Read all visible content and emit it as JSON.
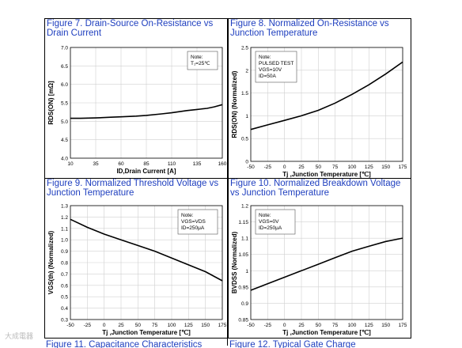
{
  "charts": [
    {
      "title": "Figure 7. Drain-Source On-Resistance vs Drain Current",
      "title_lines": [
        "Figure 7. Drain-Source On-Resistance vs",
        "Drain Current"
      ],
      "note_lines": [
        "Note:",
        "T₁=25℃"
      ]
    },
    {
      "title": "Figure 8. Normalized On-Resistance vs Junction Temperature",
      "title_lines": [
        "Figure 8. Normalized On-Resistance vs",
        "Junction Temperature"
      ],
      "note_lines": [
        "Note:",
        "PULSED TEST",
        "VGS=10V",
        "ID=50A"
      ]
    },
    {
      "title": "Figure 9. Normalized Threshold Voltage vs Junction Temperature",
      "title_lines": [
        "Figure 9. Normalized Threshold Voltage vs",
        "Junction Temperature"
      ],
      "note_lines": [
        "Note:",
        "VGS=VDS",
        "ID=250μA"
      ]
    },
    {
      "title": "Figure 10. Normalized Breakdown Voltage vs Junction Temperature",
      "title_lines": [
        "Figure 10. Normalized Breakdown Voltage",
        "vs Junction Temperature"
      ],
      "note_lines": [
        "Note:",
        "VGS=0V",
        "ID=250μA"
      ]
    }
  ],
  "bottom_partial": [
    "Figure 11. Capacitance Characteristics",
    "Figure 12. Typical Gate Charge"
  ],
  "watermark": "大成電器",
  "chart_data": [
    {
      "type": "line",
      "title": "Figure 7. Drain-Source On-Resistance vs Drain Current",
      "xlabel": "ID,Drain Current [A]",
      "ylabel": "RDS(ON) [mΩ]",
      "xlim": [
        10,
        160
      ],
      "ylim": [
        4.0,
        7.0
      ],
      "x_ticks": [
        10,
        35,
        60,
        85,
        110,
        135,
        160
      ],
      "y_ticks": [
        4.0,
        4.5,
        5.0,
        5.5,
        6.0,
        6.5,
        7.0
      ],
      "grid": true,
      "legend": "top-right note box",
      "series": [
        {
          "x": [
            10,
            20,
            35,
            50,
            60,
            75,
            85,
            100,
            110,
            125,
            135,
            145,
            152,
            160
          ],
          "y": [
            5.08,
            5.08,
            5.09,
            5.11,
            5.12,
            5.14,
            5.16,
            5.2,
            5.23,
            5.29,
            5.32,
            5.35,
            5.39,
            5.45
          ]
        }
      ]
    },
    {
      "type": "line",
      "title": "Figure 8. Normalized On-Resistance vs Junction Temperature",
      "xlabel": "Tj ,Junction Temperature [℃]",
      "ylabel": "RDS(ON) (Normalized)",
      "xlim": [
        -50,
        175
      ],
      "ylim": [
        0,
        2.5
      ],
      "x_ticks": [
        -50,
        -25,
        0,
        25,
        50,
        75,
        100,
        125,
        150,
        175
      ],
      "y_ticks": [
        0,
        0.5,
        1,
        1.5,
        2,
        2.5
      ],
      "grid": true,
      "legend": "top-left note box",
      "series": [
        {
          "x": [
            -50,
            -25,
            0,
            25,
            50,
            75,
            100,
            125,
            150,
            175
          ],
          "y": [
            0.7,
            0.8,
            0.9,
            1.0,
            1.12,
            1.28,
            1.47,
            1.68,
            1.92,
            2.18
          ]
        }
      ]
    },
    {
      "type": "line",
      "title": "Figure 9. Normalized Threshold Voltage vs Junction Temperature",
      "xlabel": "Tj ,Junction Temperature [℃]",
      "ylabel": "VGS(th) (Normalized)",
      "xlim": [
        -50,
        175
      ],
      "ylim": [
        0.3,
        1.3
      ],
      "x_ticks": [
        -50,
        -25,
        0,
        25,
        50,
        75,
        100,
        125,
        150,
        175
      ],
      "y_ticks": [
        0.3,
        0.4,
        0.5,
        0.6,
        0.7,
        0.8,
        0.9,
        1.0,
        1.1,
        1.2,
        1.3
      ],
      "grid": true,
      "legend": "top-right note box",
      "series": [
        {
          "x": [
            -50,
            -25,
            0,
            25,
            50,
            75,
            100,
            125,
            150,
            175
          ],
          "y": [
            1.18,
            1.11,
            1.05,
            1.0,
            0.95,
            0.9,
            0.84,
            0.78,
            0.72,
            0.64
          ]
        }
      ]
    },
    {
      "type": "line",
      "title": "Figure 10. Normalized Breakdown Voltage vs Junction Temperature",
      "xlabel": "Tj ,Junction Temperature [℃]",
      "ylabel": "BVDSS (Normalized)",
      "xlim": [
        -50,
        175
      ],
      "ylim": [
        0.85,
        1.2
      ],
      "x_ticks": [
        -50,
        -25,
        0,
        25,
        50,
        75,
        100,
        125,
        150,
        175
      ],
      "y_ticks": [
        0.85,
        0.9,
        0.95,
        1.0,
        1.05,
        1.1,
        1.15,
        1.2
      ],
      "grid": true,
      "legend": "top-left note box",
      "series": [
        {
          "x": [
            -50,
            -25,
            0,
            25,
            50,
            75,
            100,
            125,
            150,
            175
          ],
          "y": [
            0.94,
            0.96,
            0.98,
            1.0,
            1.02,
            1.04,
            1.06,
            1.075,
            1.09,
            1.1
          ]
        }
      ]
    }
  ]
}
